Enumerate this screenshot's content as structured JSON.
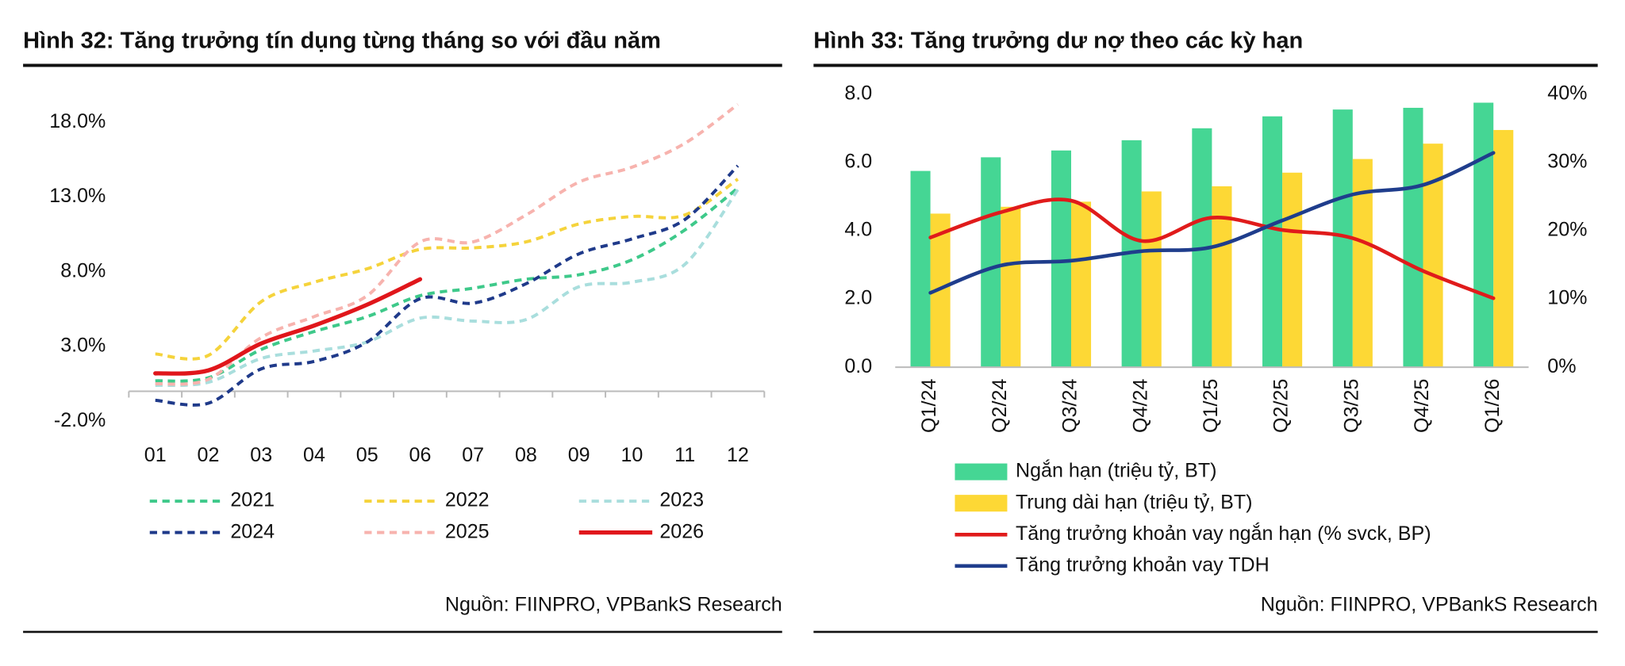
{
  "chart_data": [
    {
      "type": "line",
      "title": "Hình 32: Tăng trưởng tín dụng từng tháng so với đầu năm",
      "source": "Nguồn: FIINPRO, VPBankS Research",
      "categories": [
        "01",
        "02",
        "03",
        "04",
        "05",
        "06",
        "07",
        "08",
        "09",
        "10",
        "11",
        "12"
      ],
      "ylim": [
        -2,
        20
      ],
      "yticks": [
        {
          "value": -2,
          "label": "-2.0%"
        },
        {
          "value": 3,
          "label": "3.0%"
        },
        {
          "value": 8,
          "label": "8.0%"
        },
        {
          "value": 13,
          "label": "13.0%"
        },
        {
          "value": 18,
          "label": "18.0%"
        }
      ],
      "series": [
        {
          "name": "2021",
          "color": "#3ec98a",
          "line_style": "dashed",
          "values": [
            0.7,
            0.9,
            2.8,
            4.0,
            5.0,
            6.4,
            6.9,
            7.5,
            7.8,
            8.8,
            10.8,
            13.6
          ]
        },
        {
          "name": "2022",
          "color": "#f5d33b",
          "line_style": "dashed",
          "values": [
            2.5,
            2.4,
            6.0,
            7.3,
            8.2,
            9.5,
            9.6,
            10.0,
            11.2,
            11.7,
            11.8,
            14.2
          ]
        },
        {
          "name": "2023",
          "color": "#a9dedd",
          "line_style": "dashed",
          "values": [
            0.4,
            0.6,
            2.2,
            2.7,
            3.3,
            4.9,
            4.7,
            4.8,
            7.0,
            7.3,
            8.5,
            13.5
          ]
        },
        {
          "name": "2024",
          "color": "#1f3a8a",
          "line_style": "dashed",
          "values": [
            -0.6,
            -0.8,
            1.5,
            2.0,
            3.3,
            6.2,
            5.9,
            7.2,
            9.2,
            10.2,
            11.5,
            15.1
          ]
        },
        {
          "name": "2025",
          "color": "#f7b3ae",
          "line_style": "dashed",
          "values": [
            0.5,
            0.8,
            3.6,
            5.0,
            6.4,
            10.0,
            10.0,
            11.8,
            14.0,
            15.0,
            16.6,
            19.2
          ]
        },
        {
          "name": "2026",
          "color": "#e0161b",
          "line_style": "solid",
          "values": [
            1.2,
            1.4,
            3.2,
            4.4,
            5.8,
            7.5,
            null,
            null,
            null,
            null,
            null,
            null
          ]
        }
      ]
    },
    {
      "type": "combo",
      "title": "Hình 33: Tăng trưởng dư nợ theo các kỳ hạn",
      "source": "Nguồn: FIINPRO, VPBankS Research",
      "categories": [
        "Q1/24",
        "Q2/24",
        "Q3/24",
        "Q4/24",
        "Q1/25",
        "Q2/25",
        "Q3/25",
        "Q4/25",
        "Q1/26"
      ],
      "ylim": [
        0,
        8
      ],
      "yticks": [
        {
          "value": 0,
          "label": "0.0"
        },
        {
          "value": 2,
          "label": "2.0"
        },
        {
          "value": 4,
          "label": "4.0"
        },
        {
          "value": 6,
          "label": "6.0"
        },
        {
          "value": 8,
          "label": "8.0"
        }
      ],
      "y2lim": [
        0,
        40
      ],
      "y2ticks": [
        {
          "value": 0,
          "label": "0%"
        },
        {
          "value": 10,
          "label": "10%"
        },
        {
          "value": 20,
          "label": "20%"
        },
        {
          "value": 30,
          "label": "30%"
        },
        {
          "value": 40,
          "label": "40%"
        }
      ],
      "series": [
        {
          "name": "Ngắn hạn (triệu tỷ, BT)",
          "type": "bar",
          "color": "#45d694",
          "values": [
            5.75,
            6.15,
            6.35,
            6.65,
            7.0,
            7.35,
            7.55,
            7.6,
            7.75
          ]
        },
        {
          "name": "Trung dài hạn (triệu tỷ, BT)",
          "type": "bar",
          "color": "#fdd835",
          "values": [
            4.5,
            4.7,
            4.85,
            5.15,
            5.3,
            5.7,
            6.1,
            6.55,
            6.95
          ]
        },
        {
          "name": "Tăng trưởng khoản vay ngắn hạn (% svck, BP)",
          "type": "line",
          "axis": "y2",
          "color": "#e01b1b",
          "values": [
            19.0,
            22.7,
            24.4,
            18.5,
            21.9,
            20.1,
            18.9,
            14.1,
            10.1
          ]
        },
        {
          "name": "Tăng trưởng khoản vay TDH",
          "type": "line",
          "axis": "y2",
          "color": "#1f3d8c",
          "values": [
            10.9,
            14.9,
            15.6,
            17.0,
            17.6,
            21.5,
            25.3,
            26.7,
            31.4
          ]
        }
      ]
    }
  ]
}
